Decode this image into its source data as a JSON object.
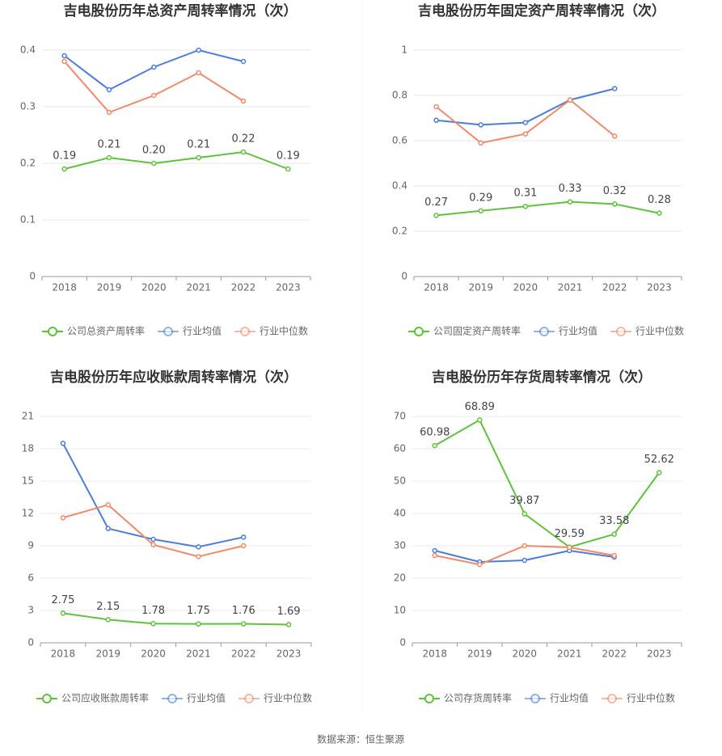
{
  "chart_data": [
    {
      "type": "line",
      "title": "吉电股份历年总资产周转率情况（次）",
      "categories": [
        "2018",
        "2019",
        "2020",
        "2021",
        "2022",
        "2023"
      ],
      "ylim": [
        0,
        0.4
      ],
      "yticks": [
        0,
        0.1,
        0.2,
        0.3,
        0.4
      ],
      "grid": true,
      "series": [
        {
          "name": "公司总资产周转率",
          "color": "#5cc43a",
          "values": [
            0.19,
            0.21,
            0.2,
            0.21,
            0.22,
            0.19
          ],
          "value_labels": [
            "0.19",
            "0.21",
            "0.20",
            "0.21",
            "0.22",
            "0.19"
          ]
        },
        {
          "name": "行业均值",
          "color": "#4a7ddb",
          "values": [
            0.39,
            0.33,
            0.37,
            0.4,
            0.38,
            null
          ]
        },
        {
          "name": "行业中位数",
          "color": "#f08a68",
          "values": [
            0.38,
            0.29,
            0.32,
            0.36,
            0.31,
            null
          ]
        }
      ]
    },
    {
      "type": "line",
      "title": "吉电股份历年固定资产周转率情况（次）",
      "categories": [
        "2018",
        "2019",
        "2020",
        "2021",
        "2022",
        "2023"
      ],
      "ylim": [
        0,
        1
      ],
      "yticks": [
        0,
        0.2,
        0.4,
        0.6,
        0.8,
        1
      ],
      "grid": true,
      "series": [
        {
          "name": "公司固定资产周转率",
          "color": "#5cc43a",
          "values": [
            0.27,
            0.29,
            0.31,
            0.33,
            0.32,
            0.28
          ]
        },
        {
          "name": "行业均值",
          "color": "#4a7ddb",
          "values": [
            0.69,
            0.67,
            0.68,
            0.78,
            0.83,
            null
          ]
        },
        {
          "name": "行业中位数",
          "color": "#f08a68",
          "values": [
            0.75,
            0.59,
            0.63,
            0.78,
            0.62,
            null
          ]
        }
      ]
    },
    {
      "type": "line",
      "title": "吉电股份历年应收账款周转率情况（次）",
      "categories": [
        "2018",
        "2019",
        "2020",
        "2021",
        "2022",
        "2023"
      ],
      "ylim": [
        0,
        21
      ],
      "yticks": [
        0,
        3,
        6,
        9,
        12,
        15,
        18,
        21
      ],
      "grid": true,
      "series": [
        {
          "name": "公司应收账款周转率",
          "color": "#5cc43a",
          "values": [
            2.75,
            2.15,
            1.78,
            1.75,
            1.76,
            1.69
          ]
        },
        {
          "name": "行业均值",
          "color": "#4a7ddb",
          "values": [
            18.5,
            10.6,
            9.6,
            8.9,
            9.8,
            null
          ]
        },
        {
          "name": "行业中位数",
          "color": "#f08a68",
          "values": [
            11.6,
            12.8,
            9.1,
            8.0,
            9.0,
            null
          ]
        }
      ]
    },
    {
      "type": "line",
      "title": "吉电股份历年存货周转率情况（次）",
      "categories": [
        "2018",
        "2019",
        "2020",
        "2021",
        "2022",
        "2023"
      ],
      "ylim": [
        0,
        70
      ],
      "yticks": [
        0,
        10,
        20,
        30,
        40,
        50,
        60,
        70
      ],
      "grid": true,
      "series": [
        {
          "name": "公司存货周转率",
          "color": "#5cc43a",
          "values": [
            60.98,
            68.89,
            39.87,
            29.59,
            33.58,
            52.62
          ]
        },
        {
          "name": "行业均值",
          "color": "#4a7ddb",
          "values": [
            28.5,
            25.0,
            25.5,
            28.5,
            26.5,
            null
          ]
        },
        {
          "name": "行业中位数",
          "color": "#f08a68",
          "values": [
            27.0,
            24.2,
            30.0,
            29.5,
            27.0,
            null
          ]
        }
      ]
    }
  ],
  "source": "数据来源：恒生聚源"
}
